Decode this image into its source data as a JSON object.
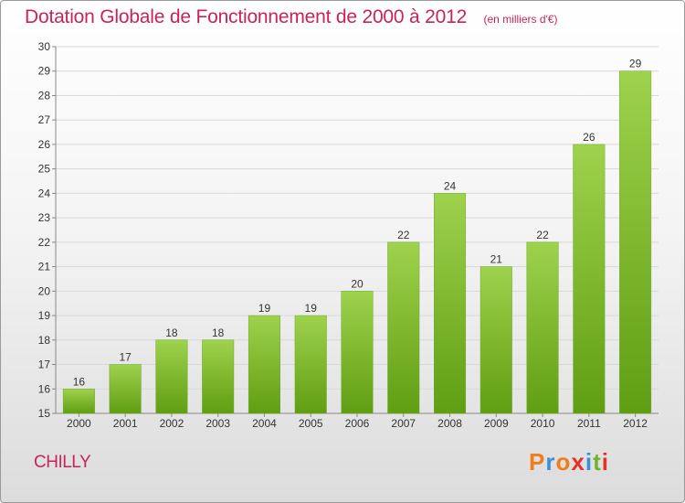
{
  "header": {
    "title": "Dotation Globale de Fonctionnement de 2000 à 2012",
    "subtitle": "(en milliers d'€)"
  },
  "footer": {
    "commune": "CHILLY",
    "logo_text": "Proxiti"
  },
  "colors": {
    "title": "#c8245a",
    "bar_top": "#9fd24d",
    "bar_bottom": "#5f9e12",
    "logo": [
      "#f07c1c",
      "#3a8fd8",
      "#f07c1c",
      "#e8302a",
      "#3a8fd8",
      "#6fb52a",
      "#e8302a"
    ]
  },
  "chart_data": {
    "type": "bar",
    "categories": [
      "2000",
      "2001",
      "2002",
      "2003",
      "2004",
      "2005",
      "2006",
      "2007",
      "2008",
      "2009",
      "2010",
      "2011",
      "2012"
    ],
    "values": [
      16,
      17,
      18,
      18,
      19,
      19,
      20,
      22,
      24,
      21,
      22,
      26,
      29
    ],
    "ylim": [
      15,
      30
    ],
    "yticks": [
      15,
      16,
      17,
      18,
      19,
      20,
      21,
      22,
      23,
      24,
      25,
      26,
      27,
      28,
      29,
      30
    ],
    "grid": true,
    "legend": "none"
  }
}
